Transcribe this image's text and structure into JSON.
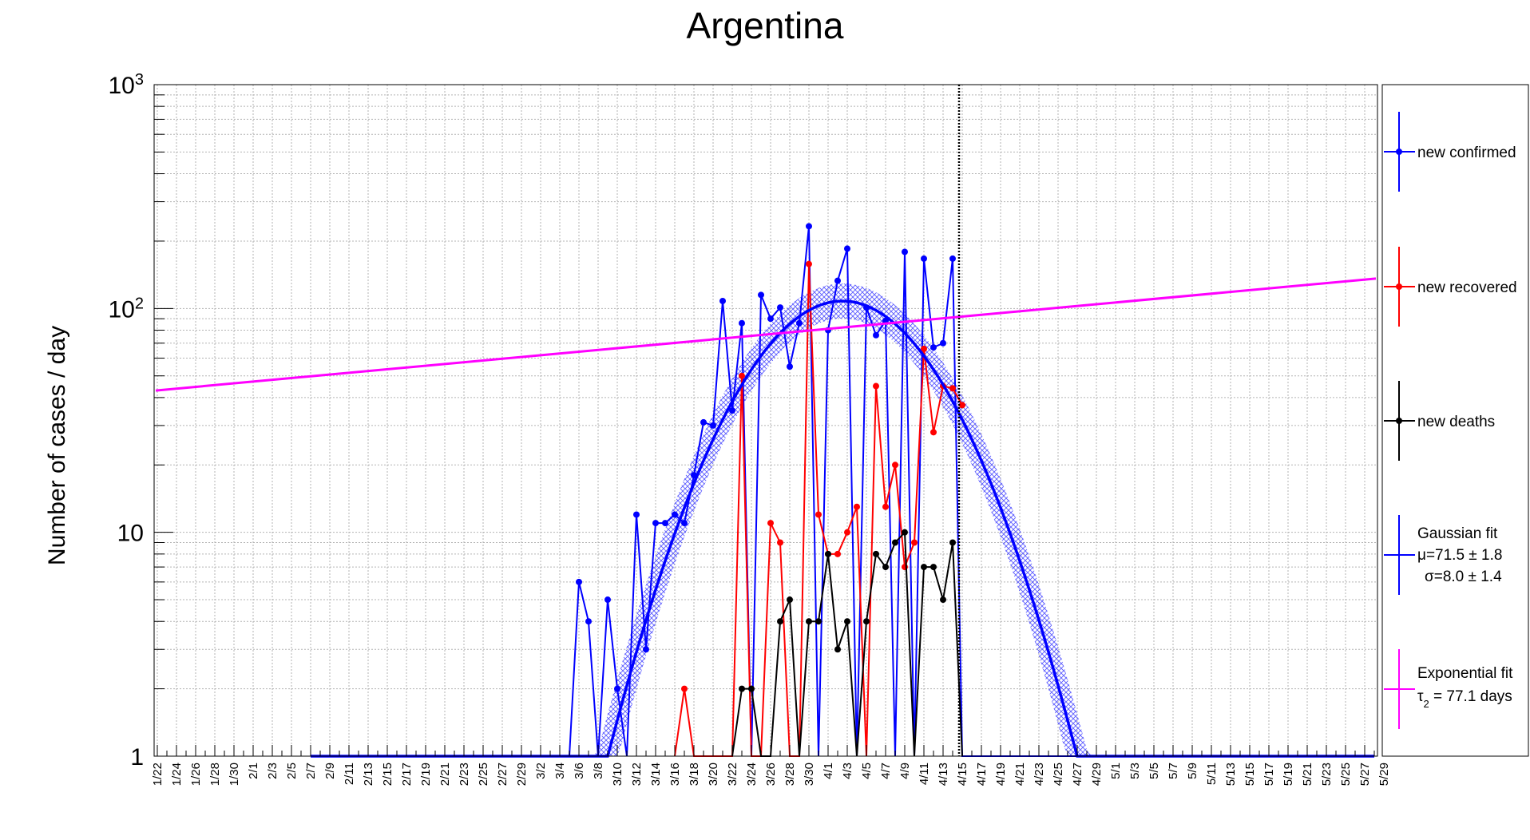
{
  "chart_data": {
    "type": "line",
    "title": "Argentina",
    "ylabel": "Number of cases / day",
    "xlabel": "",
    "yscale": "log",
    "ylim": [
      1,
      1000
    ],
    "y_ticks": [
      {
        "value": 1,
        "base": "1",
        "exp": ""
      },
      {
        "value": 10,
        "base": "10",
        "exp": ""
      },
      {
        "value": 100,
        "base": "10",
        "exp": "2"
      },
      {
        "value": 1000,
        "base": "10",
        "exp": "3"
      }
    ],
    "grid": true,
    "legend_position": "right",
    "x_start_day": 0,
    "x_end_day": 130,
    "x_tick_labels": [
      "1/22",
      "1/24",
      "1/26",
      "1/28",
      "1/30",
      "2/1",
      "2/3",
      "2/5",
      "2/7",
      "2/9",
      "2/11",
      "2/13",
      "2/15",
      "2/17",
      "2/19",
      "2/21",
      "2/23",
      "2/25",
      "2/27",
      "2/29",
      "3/2",
      "3/4",
      "3/6",
      "3/8",
      "3/10",
      "3/12",
      "3/14",
      "3/16",
      "3/18",
      "3/20",
      "3/22",
      "3/24",
      "3/26",
      "3/28",
      "3/30",
      "4/1",
      "4/3",
      "4/5",
      "4/7",
      "4/9",
      "4/11",
      "4/13",
      "4/15",
      "4/17",
      "4/19",
      "4/21",
      "4/23",
      "4/25",
      "4/27",
      "4/29",
      "5/1",
      "5/3",
      "5/5",
      "5/7",
      "5/9",
      "5/11",
      "5/13",
      "5/15",
      "5/17",
      "5/19",
      "5/21",
      "5/23",
      "5/25",
      "5/27",
      "5/29"
    ],
    "vertical_marker_label": "4/15",
    "series": [
      {
        "name": "new confirmed",
        "color": "#0000ff",
        "x": [
          "2/7",
          "2/29",
          "3/5",
          "3/6",
          "3/7",
          "3/8",
          "3/9",
          "3/10",
          "3/11",
          "3/12",
          "3/13",
          "3/14",
          "3/15",
          "3/16",
          "3/17",
          "3/18",
          "3/19",
          "3/20",
          "3/21",
          "3/22",
          "3/23",
          "3/24",
          "3/25",
          "3/26",
          "3/27",
          "3/28",
          "3/29",
          "3/30",
          "3/31",
          "4/1",
          "4/2",
          "4/3",
          "4/4",
          "4/5",
          "4/6",
          "4/7",
          "4/8",
          "4/9",
          "4/10",
          "4/11",
          "4/12",
          "4/13",
          "4/14",
          "4/15",
          "5/28"
        ],
        "values": [
          1,
          1,
          1,
          6,
          4,
          1,
          5,
          2,
          1,
          12,
          3,
          11,
          11,
          12,
          11,
          18,
          31,
          30,
          108,
          35,
          86,
          1,
          115,
          90,
          101,
          55,
          86,
          233,
          1,
          80,
          133,
          185,
          1,
          101,
          76,
          88,
          1,
          179,
          1,
          167,
          67,
          70,
          167,
          1,
          1
        ]
      },
      {
        "name": "new recovered",
        "color": "#ff0000",
        "x": [
          "3/16",
          "3/17",
          "3/18",
          "3/22",
          "3/23",
          "3/24",
          "3/25",
          "3/26",
          "3/27",
          "3/28",
          "3/29",
          "3/30",
          "3/31",
          "4/1",
          "4/2",
          "4/3",
          "4/4",
          "4/5",
          "4/6",
          "4/7",
          "4/8",
          "4/9",
          "4/10",
          "4/11",
          "4/12",
          "4/13",
          "4/14",
          "4/15"
        ],
        "values": [
          1,
          2,
          1,
          1,
          50,
          1,
          1,
          11,
          9,
          1,
          1,
          158,
          12,
          8,
          8,
          10,
          13,
          1,
          45,
          13,
          20,
          7,
          9,
          66,
          28,
          45,
          44,
          37
        ]
      },
      {
        "name": "new deaths",
        "color": "#000000",
        "x": [
          "3/22",
          "3/23",
          "3/24",
          "3/25",
          "3/26",
          "3/27",
          "3/28",
          "3/29",
          "3/30",
          "3/31",
          "4/1",
          "4/2",
          "4/3",
          "4/4",
          "4/5",
          "4/6",
          "4/7",
          "4/8",
          "4/9",
          "4/10",
          "4/11",
          "4/12",
          "4/13",
          "4/14",
          "4/15"
        ],
        "values": [
          1,
          2,
          2,
          1,
          1,
          4,
          5,
          1,
          4,
          4,
          8,
          3,
          4,
          1,
          4,
          8,
          7,
          9,
          10,
          1,
          7,
          7,
          5,
          9,
          1
        ]
      }
    ],
    "fits": [
      {
        "name": "Gaussian fit",
        "color": "#0000ff",
        "param_lines": [
          "μ=71.5 ± 1.8",
          "σ=8.0 ± 1.4"
        ],
        "mu_day": 71.5,
        "sigma_days": 8.0,
        "amplitude": 108,
        "x_range": [
          "2/7",
          "5/28"
        ]
      },
      {
        "name": "Exponential fit",
        "color": "#ff00ff",
        "param_sym": "τ",
        "param_sub": "2",
        "param_rest": " = 77.1 days",
        "start_value": 43,
        "end_value": 136
      }
    ]
  }
}
